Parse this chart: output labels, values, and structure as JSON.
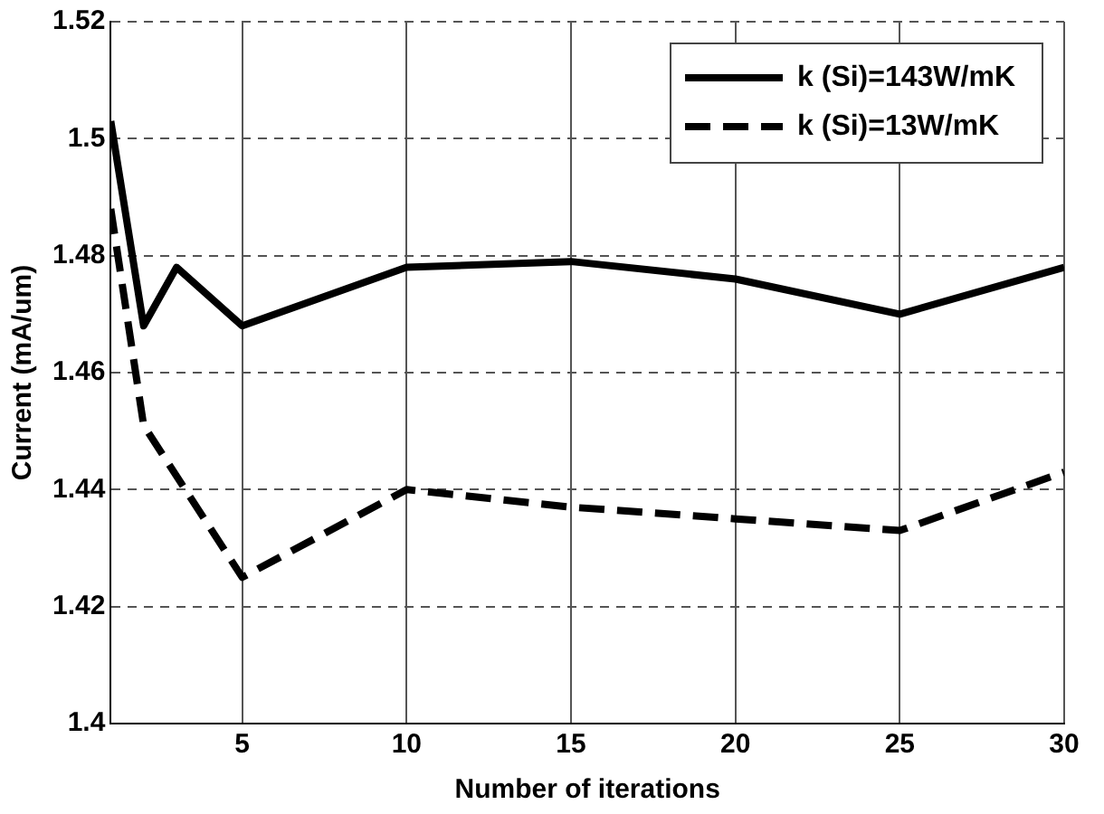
{
  "chart_data": {
    "type": "line",
    "xlabel": "Number of iterations",
    "ylabel": "Current (mA/um)",
    "xlim": [
      1,
      30
    ],
    "xticks": [
      5,
      10,
      15,
      20,
      25,
      30
    ],
    "ylim": [
      1.4,
      1.52
    ],
    "yticks": [
      1.4,
      1.42,
      1.44,
      1.46,
      1.48,
      1.5,
      1.52
    ],
    "grid": true,
    "legend": "top right",
    "marker": "none",
    "series": [
      {
        "name": "k (Si)=143W/mK",
        "color": "#000000",
        "line_style": "solid",
        "x": [
          1,
          2,
          3,
          5,
          10,
          15,
          20,
          25,
          30
        ],
        "values": [
          1.503,
          1.468,
          1.478,
          1.468,
          1.478,
          1.479,
          1.476,
          1.47,
          1.478
        ]
      },
      {
        "name": "k (Si)=13W/mK",
        "color": "#000000",
        "line_style": "dashed",
        "x": [
          1,
          2,
          5,
          10,
          15,
          20,
          25,
          30
        ],
        "values": [
          1.488,
          1.451,
          1.425,
          1.44,
          1.437,
          1.435,
          1.433,
          1.443
        ]
      }
    ]
  }
}
